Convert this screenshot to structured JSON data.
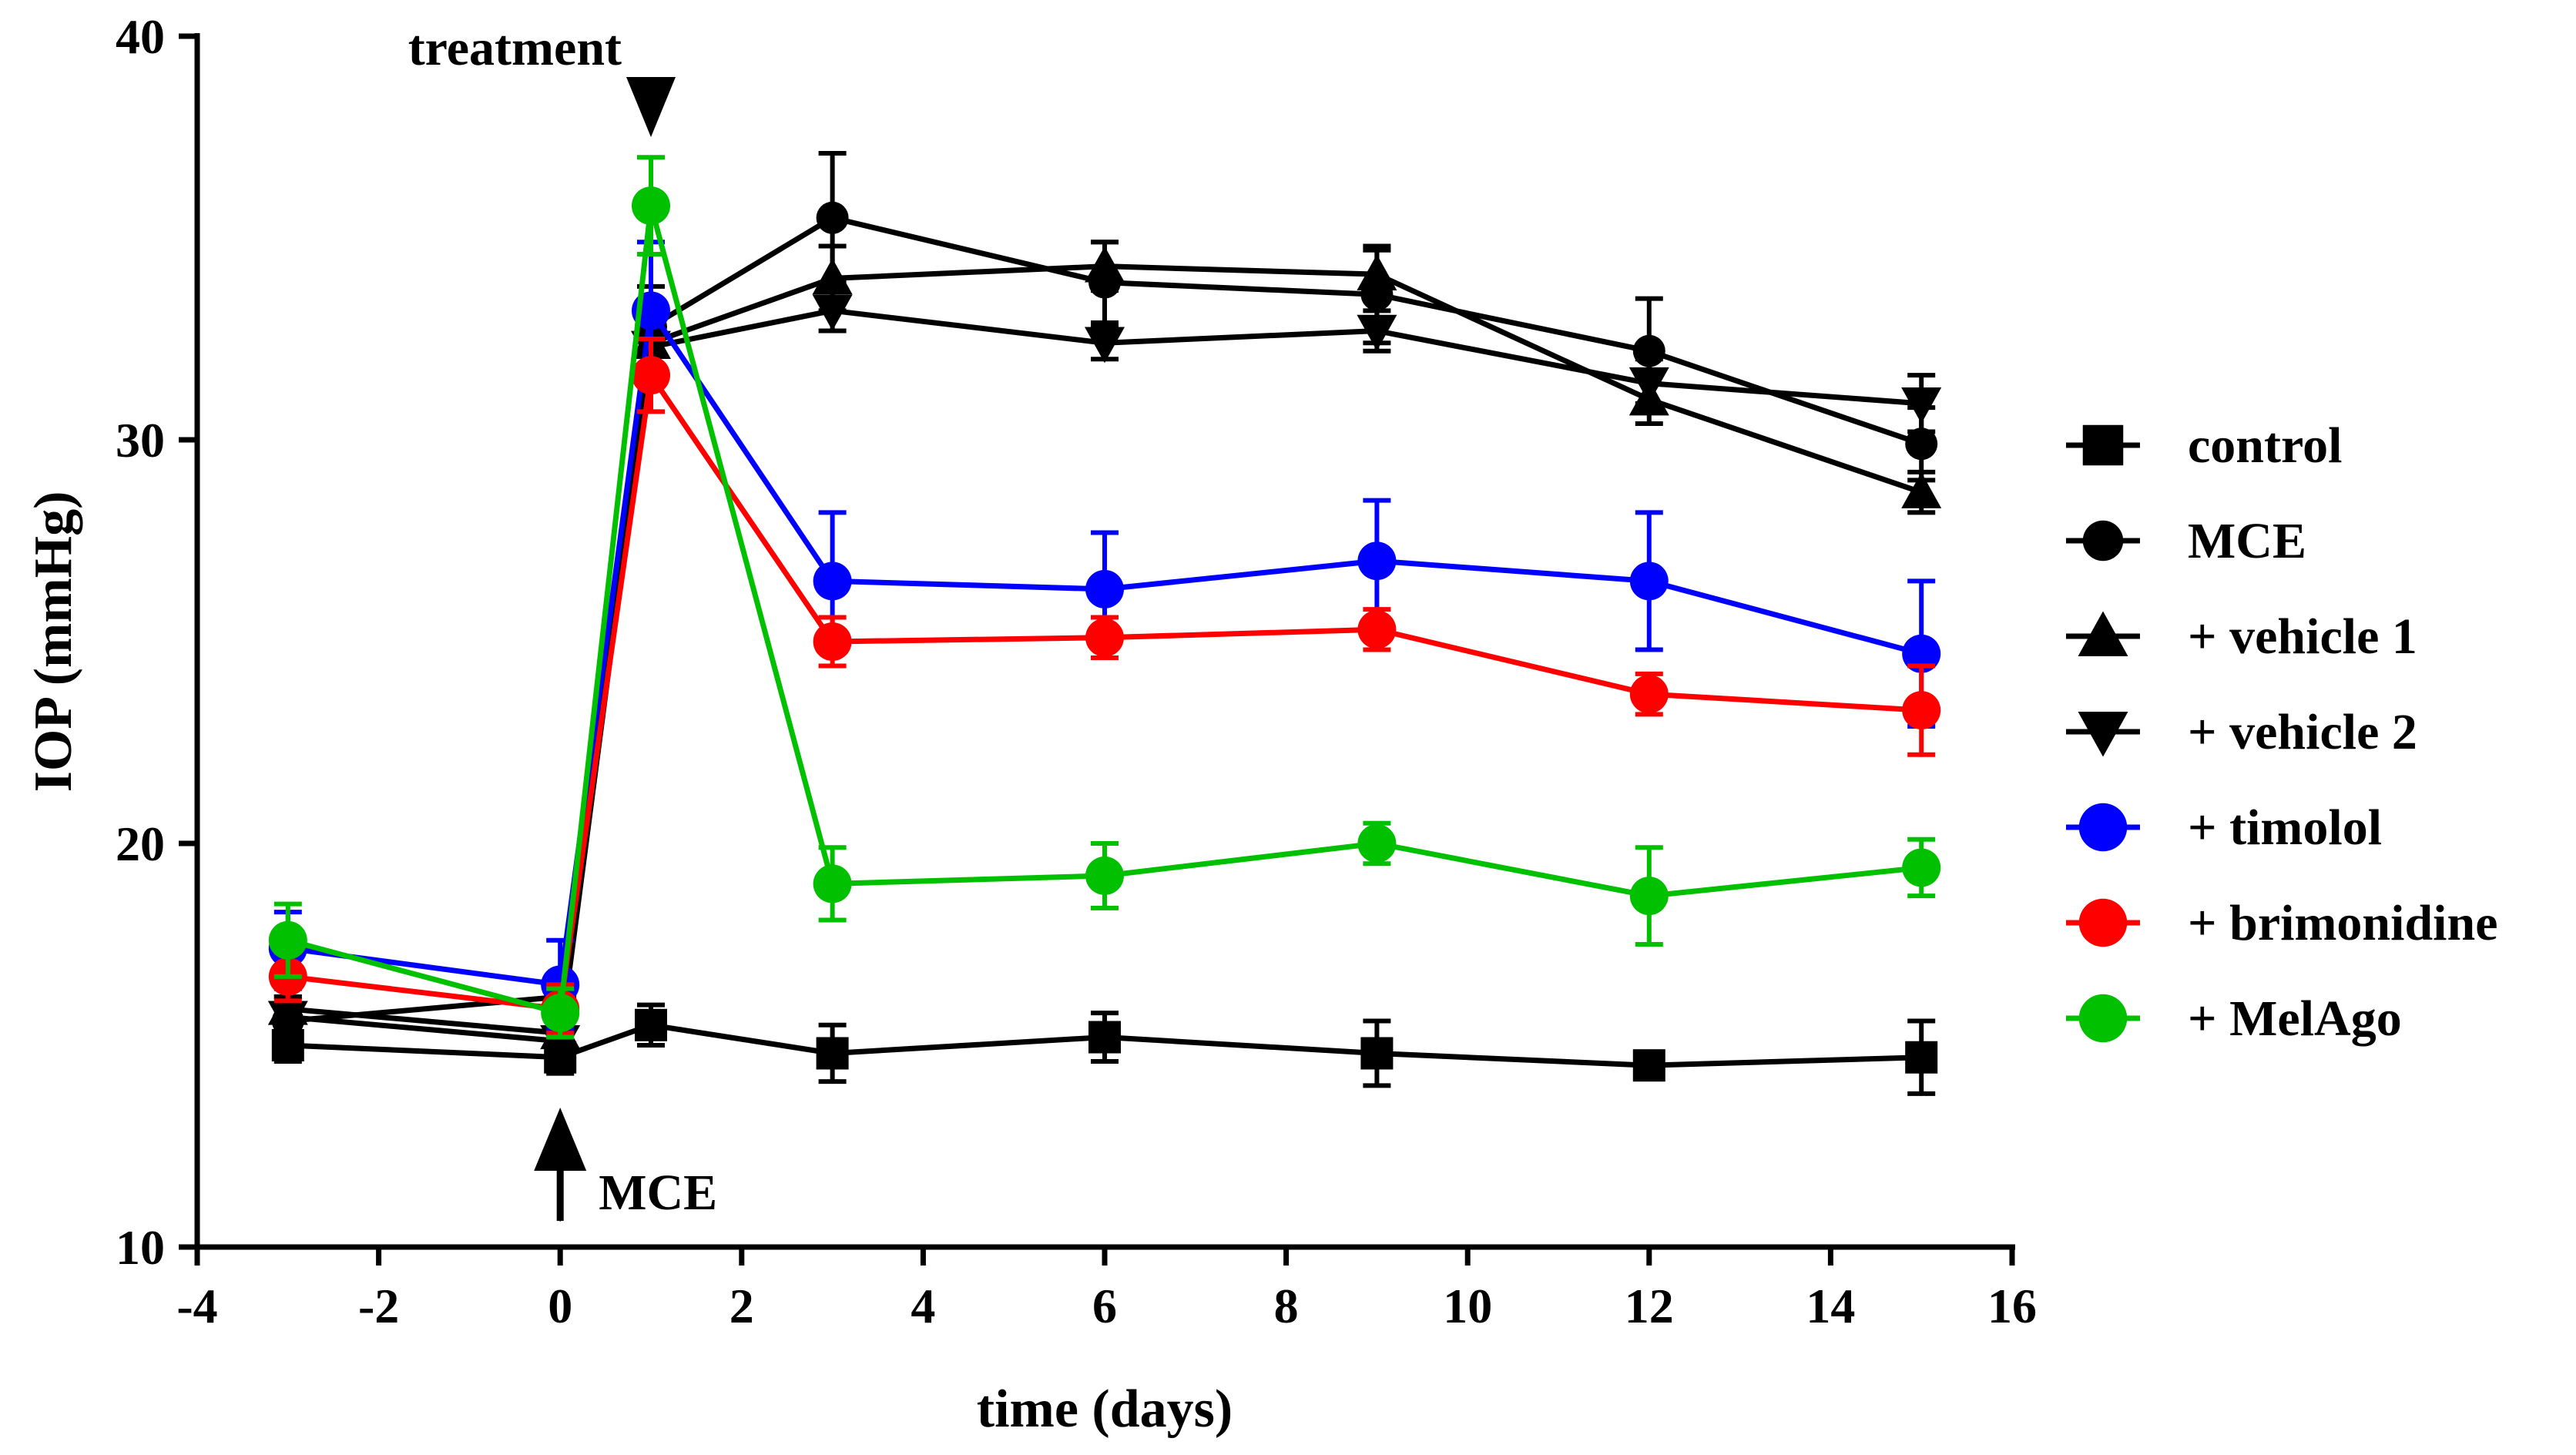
{
  "chart_data": {
    "type": "line",
    "title": "",
    "xlabel": "time (days)",
    "ylabel": "IOP (mmHg)",
    "xlim": [
      -4,
      16
    ],
    "ylim": [
      10,
      40
    ],
    "xticks": [
      -4,
      -2,
      0,
      2,
      4,
      6,
      8,
      10,
      12,
      14,
      16
    ],
    "yticks": [
      10,
      20,
      30,
      40
    ],
    "xtick_labels": [
      "-4",
      "-2",
      "0",
      "2",
      "4",
      "6",
      "8",
      "10",
      "12",
      "14",
      "16"
    ],
    "ytick_labels": [
      "10",
      "20",
      "30",
      "40"
    ],
    "grid": false,
    "legend_position": "right",
    "annotations": [
      {
        "id": "treatment",
        "text": "treatment",
        "x": 1,
        "marker": "down-triangle"
      },
      {
        "id": "mce",
        "text": "MCE",
        "x": 0,
        "marker": "up-arrow"
      }
    ],
    "series": [
      {
        "name": "control",
        "color": "#000000",
        "marker": "square",
        "x": [
          -3,
          0,
          1,
          3,
          6,
          9,
          12,
          15
        ],
        "values": [
          15.0,
          14.7,
          15.5,
          14.8,
          15.2,
          14.8,
          14.5,
          14.7
        ],
        "errors": [
          0.4,
          0.4,
          0.5,
          0.7,
          0.6,
          0.8,
          0.3,
          0.9
        ]
      },
      {
        "name": "MCE",
        "color": "#000000",
        "marker": "circle",
        "x": [
          -3,
          0,
          1,
          3,
          6,
          9,
          12,
          15
        ],
        "values": [
          15.6,
          16.2,
          32.8,
          35.5,
          33.9,
          33.6,
          32.2,
          29.9
        ],
        "errors": [
          0.6,
          0.5,
          1.0,
          1.6,
          1.0,
          1.2,
          1.3,
          0.9
        ]
      },
      {
        "name": "+ vehicle 1",
        "color": "#000000",
        "marker": "triangle-up",
        "x": [
          -3,
          0,
          1,
          3,
          6,
          9,
          12,
          15
        ],
        "values": [
          15.9,
          15.3,
          32.4,
          34.0,
          34.3,
          34.1,
          31.0,
          28.7
        ],
        "errors": [
          0.5,
          0.5,
          0.9,
          0.8,
          0.6,
          0.6,
          0.6,
          0.5
        ]
      },
      {
        "name": "+ vehicle 2",
        "color": "#000000",
        "marker": "triangle-down",
        "x": [
          -3,
          0,
          1,
          3,
          6,
          9,
          12,
          15
        ],
        "values": [
          15.7,
          15.1,
          32.3,
          33.2,
          32.4,
          32.7,
          31.4,
          30.9
        ],
        "errors": [
          0.5,
          0.5,
          0.8,
          0.5,
          0.4,
          0.5,
          0.6,
          0.7
        ]
      },
      {
        "name": "+ timolol",
        "color": "#0000ff",
        "marker": "circle",
        "x": [
          -3,
          0,
          1,
          3,
          6,
          9,
          12,
          15
        ],
        "values": [
          17.4,
          16.5,
          33.2,
          26.5,
          26.3,
          27.0,
          26.5,
          24.7
        ],
        "errors": [
          0.9,
          1.1,
          1.7,
          1.7,
          1.4,
          1.5,
          1.7,
          1.8
        ]
      },
      {
        "name": "+ brimonidine",
        "color": "#ff0000",
        "marker": "circle",
        "x": [
          -3,
          0,
          1,
          3,
          6,
          9,
          12,
          15
        ],
        "values": [
          16.7,
          15.9,
          31.6,
          25.0,
          25.1,
          25.3,
          23.7,
          23.3
        ],
        "errors": [
          0.6,
          0.6,
          0.9,
          0.6,
          0.5,
          0.5,
          0.5,
          1.1
        ]
      },
      {
        "name": "+ MelAgo",
        "color": "#00c000",
        "marker": "circle",
        "x": [
          -3,
          0,
          1,
          3,
          6,
          9,
          12,
          15
        ],
        "values": [
          17.6,
          15.8,
          35.8,
          19.0,
          19.2,
          20.0,
          18.7,
          19.4
        ],
        "errors": [
          0.9,
          0.6,
          1.2,
          0.9,
          0.8,
          0.5,
          1.2,
          0.7
        ]
      }
    ]
  }
}
